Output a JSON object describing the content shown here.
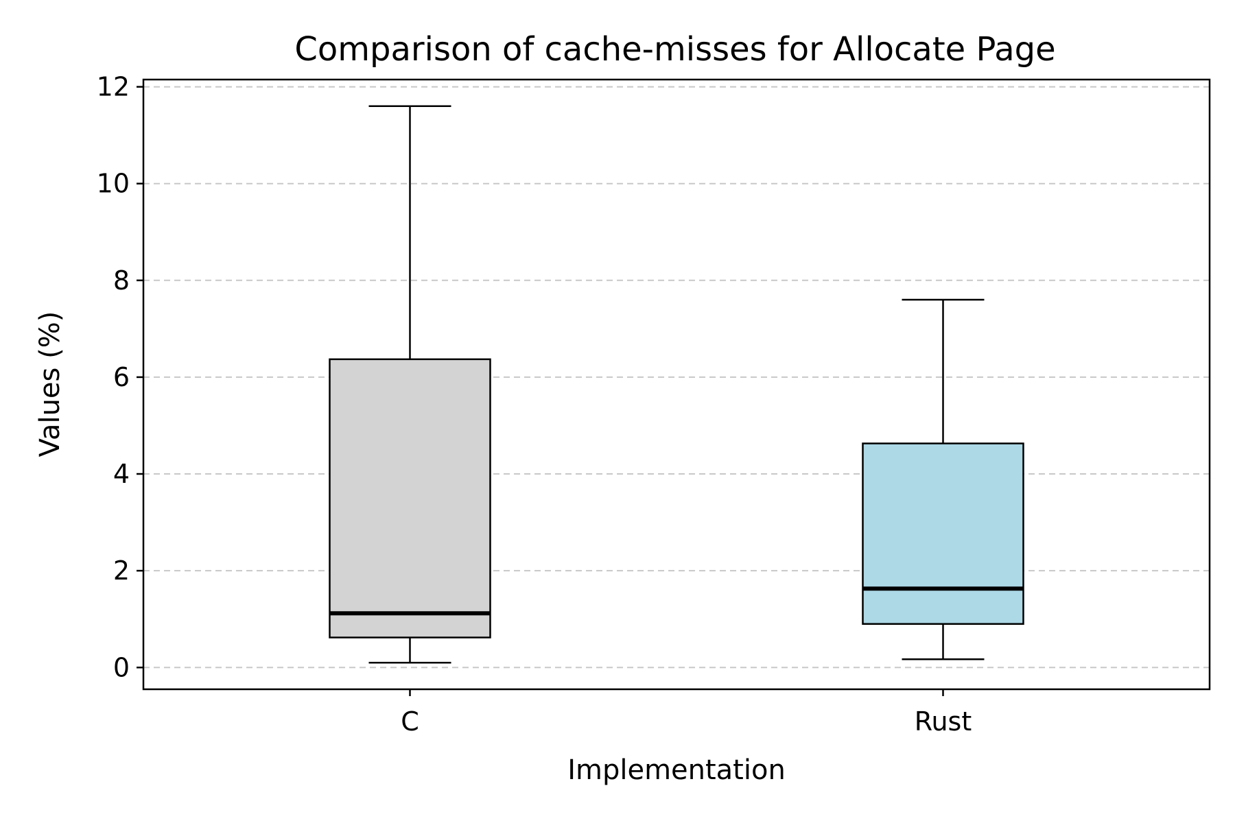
{
  "chart_data": {
    "type": "box",
    "title": "Comparison of cache-misses for Allocate Page",
    "xlabel": "Implementation",
    "ylabel": "Values (%)",
    "ylim": [
      -0.45,
      12.15
    ],
    "yticks": [
      0,
      2,
      4,
      6,
      8,
      10,
      12
    ],
    "grid": "y-dashed",
    "categories": [
      "C",
      "Rust"
    ],
    "boxes": [
      {
        "category": "C",
        "whisker_low": 0.1,
        "q1": 0.62,
        "median": 1.12,
        "q3": 6.37,
        "whisker_high": 11.6,
        "color": "#d3d3d3"
      },
      {
        "category": "Rust",
        "whisker_low": 0.17,
        "q1": 0.9,
        "median": 1.63,
        "q3": 4.63,
        "whisker_high": 7.6,
        "color": "#add8e6"
      }
    ]
  }
}
